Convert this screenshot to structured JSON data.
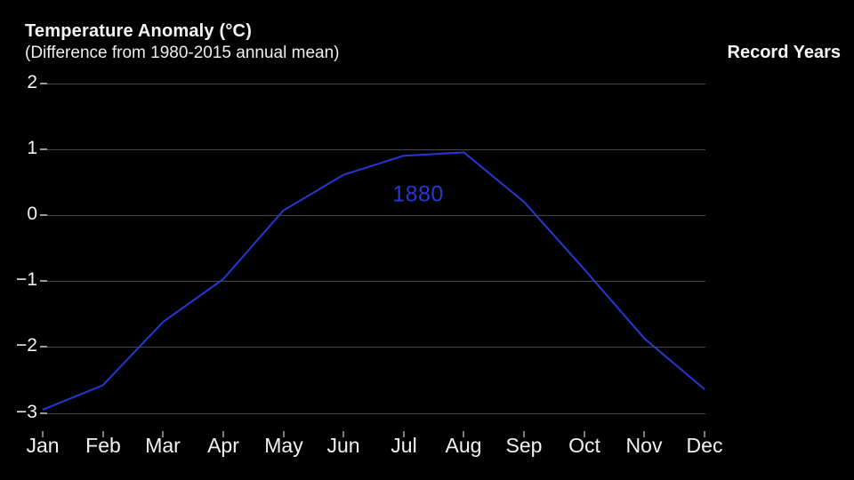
{
  "chart_data": {
    "type": "line",
    "title": "Temperature Anomaly (°C)",
    "subtitle": "(Difference from 1980-2015 annual mean)",
    "legend_title": "Record Years",
    "categories": [
      "Jan",
      "Feb",
      "Mar",
      "Apr",
      "May",
      "Jun",
      "Jul",
      "Aug",
      "Sep",
      "Oct",
      "Nov",
      "Dec"
    ],
    "series": [
      {
        "name": "1880",
        "color": "#2737d2",
        "values": [
          -2.95,
          -2.58,
          -1.62,
          -0.97,
          0.07,
          0.61,
          0.9,
          0.95,
          0.2,
          -0.82,
          -1.87,
          -2.64
        ]
      }
    ],
    "xlabel": "",
    "ylabel": "",
    "yticks": [
      2,
      1,
      0,
      -1,
      -2,
      -3
    ],
    "ytick_labels": [
      "2",
      "1",
      "0",
      "−1",
      "−2",
      "−3"
    ],
    "ylim": [
      -3.35,
      2.4
    ],
    "grid": true,
    "legend_position": "top-right",
    "colors": {
      "background": "#000000",
      "text": "#ffffff",
      "gridline": "#474747",
      "tick": "#7d7d7d",
      "series_1880": "#2737d2"
    }
  }
}
